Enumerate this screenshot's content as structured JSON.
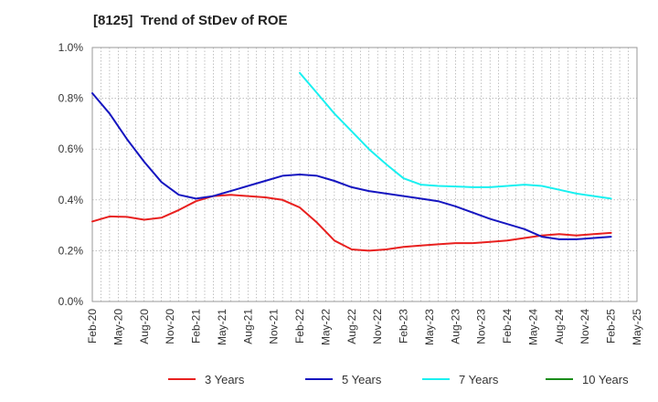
{
  "chart_data": {
    "type": "line",
    "title": "[8125]  Trend of StDev of ROE",
    "xlabel": "",
    "ylabel": "",
    "ylim": [
      0,
      1.0
    ],
    "y_ticks": [
      "0.0%",
      "0.2%",
      "0.4%",
      "0.6%",
      "0.8%",
      "1.0%"
    ],
    "x_tick_labels": [
      "Feb-20",
      "May-20",
      "Aug-20",
      "Nov-20",
      "Feb-21",
      "May-21",
      "Aug-21",
      "Nov-21",
      "Feb-22",
      "May-22",
      "Aug-22",
      "Nov-22",
      "Feb-23",
      "May-23",
      "Aug-23",
      "Nov-23",
      "Feb-24",
      "May-24",
      "Aug-24",
      "Nov-24",
      "Feb-25",
      "May-25"
    ],
    "grid": true,
    "legend_position": "bottom",
    "x_start": "2020-02",
    "series": [
      {
        "name": "3 Years",
        "color": "#e8201f",
        "points": [
          [
            "2020-02",
            0.315
          ],
          [
            "2020-04",
            0.335
          ],
          [
            "2020-06",
            0.333
          ],
          [
            "2020-08",
            0.322
          ],
          [
            "2020-10",
            0.33
          ],
          [
            "2020-12",
            0.36
          ],
          [
            "2021-02",
            0.395
          ],
          [
            "2021-04",
            0.415
          ],
          [
            "2021-06",
            0.42
          ],
          [
            "2021-08",
            0.415
          ],
          [
            "2021-10",
            0.41
          ],
          [
            "2021-12",
            0.4
          ],
          [
            "2022-02",
            0.37
          ],
          [
            "2022-04",
            0.31
          ],
          [
            "2022-06",
            0.24
          ],
          [
            "2022-08",
            0.205
          ],
          [
            "2022-10",
            0.2
          ],
          [
            "2022-12",
            0.205
          ],
          [
            "2023-02",
            0.215
          ],
          [
            "2023-04",
            0.22
          ],
          [
            "2023-06",
            0.225
          ],
          [
            "2023-08",
            0.23
          ],
          [
            "2023-10",
            0.23
          ],
          [
            "2023-12",
            0.235
          ],
          [
            "2024-02",
            0.24
          ],
          [
            "2024-04",
            0.25
          ],
          [
            "2024-06",
            0.26
          ],
          [
            "2024-08",
            0.265
          ],
          [
            "2024-10",
            0.26
          ],
          [
            "2024-12",
            0.265
          ],
          [
            "2025-02",
            0.27
          ]
        ]
      },
      {
        "name": "5 Years",
        "color": "#1515c0",
        "points": [
          [
            "2020-02",
            0.82
          ],
          [
            "2020-04",
            0.74
          ],
          [
            "2020-06",
            0.64
          ],
          [
            "2020-08",
            0.55
          ],
          [
            "2020-10",
            0.47
          ],
          [
            "2020-12",
            0.42
          ],
          [
            "2021-02",
            0.405
          ],
          [
            "2021-04",
            0.415
          ],
          [
            "2021-06",
            0.435
          ],
          [
            "2021-08",
            0.455
          ],
          [
            "2021-10",
            0.475
          ],
          [
            "2021-12",
            0.495
          ],
          [
            "2022-02",
            0.5
          ],
          [
            "2022-04",
            0.495
          ],
          [
            "2022-06",
            0.475
          ],
          [
            "2022-08",
            0.45
          ],
          [
            "2022-10",
            0.435
          ],
          [
            "2022-12",
            0.425
          ],
          [
            "2023-02",
            0.415
          ],
          [
            "2023-04",
            0.405
          ],
          [
            "2023-06",
            0.395
          ],
          [
            "2023-08",
            0.375
          ],
          [
            "2023-10",
            0.35
          ],
          [
            "2023-12",
            0.325
          ],
          [
            "2024-02",
            0.305
          ],
          [
            "2024-04",
            0.285
          ],
          [
            "2024-06",
            0.255
          ],
          [
            "2024-08",
            0.245
          ],
          [
            "2024-10",
            0.245
          ],
          [
            "2024-12",
            0.25
          ],
          [
            "2025-02",
            0.255
          ]
        ]
      },
      {
        "name": "7 Years",
        "color": "#19f0f0",
        "points": [
          [
            "2022-02",
            0.9
          ],
          [
            "2022-04",
            0.82
          ],
          [
            "2022-06",
            0.74
          ],
          [
            "2022-08",
            0.67
          ],
          [
            "2022-10",
            0.6
          ],
          [
            "2022-12",
            0.54
          ],
          [
            "2023-02",
            0.485
          ],
          [
            "2023-04",
            0.46
          ],
          [
            "2023-06",
            0.455
          ],
          [
            "2023-08",
            0.453
          ],
          [
            "2023-10",
            0.45
          ],
          [
            "2023-12",
            0.45
          ],
          [
            "2024-02",
            0.455
          ],
          [
            "2024-04",
            0.46
          ],
          [
            "2024-06",
            0.455
          ],
          [
            "2024-08",
            0.44
          ],
          [
            "2024-10",
            0.425
          ],
          [
            "2024-12",
            0.415
          ],
          [
            "2025-02",
            0.405
          ]
        ]
      },
      {
        "name": "10 Years",
        "color": "#1a8c1a",
        "points": []
      }
    ]
  }
}
